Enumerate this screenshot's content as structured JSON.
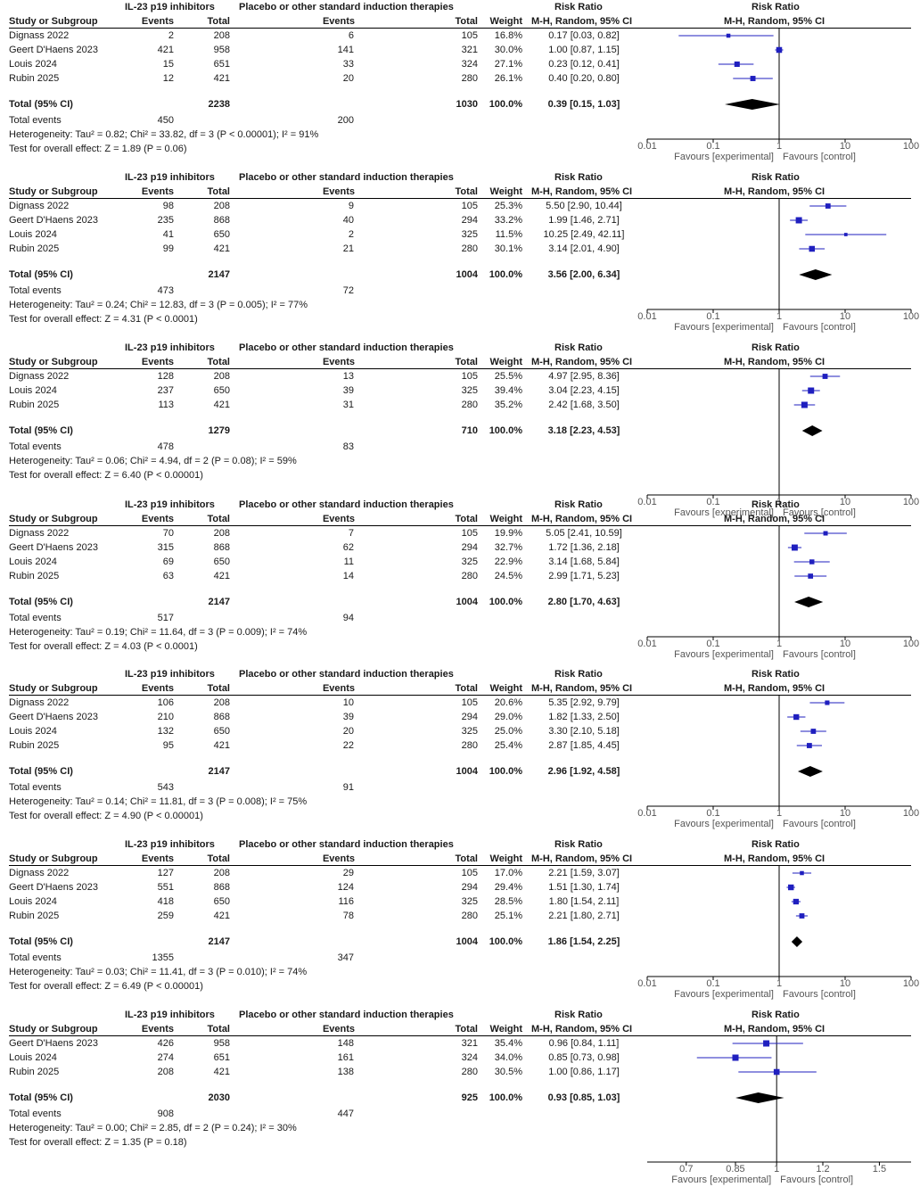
{
  "header": {
    "exp_group": "IL-23 p19 inhibitors",
    "ctrl_group": "Placebo or other standard induction therapies",
    "study_col": "Study or Subgroup",
    "events_col": "Events",
    "total_col": "Total",
    "weight_col": "Weight",
    "rr_col": "Risk Ratio",
    "rr_method": "M-H, Random, 95% CI",
    "favours_exp": "Favours [experimental]",
    "favours_ctrl": "Favours [control]",
    "total_label": "Total (95% CI)",
    "total_events_label": "Total events"
  },
  "chart_data": [
    {
      "type": "forest",
      "scale": "log",
      "xlim": [
        0.01,
        100
      ],
      "ticks": [
        0.01,
        0.1,
        1,
        10,
        100
      ],
      "tick_labels": [
        "0.01",
        "0.1",
        "1",
        "10",
        "100"
      ],
      "studies": [
        {
          "name": "Dignass  2022",
          "e_events": "2",
          "e_total": "208",
          "c_events": "6",
          "c_total": "105",
          "weight": "16.8%",
          "ci_text": "0.17 [0.03, 0.82]",
          "rr": 0.17,
          "lo": 0.03,
          "hi": 0.82
        },
        {
          "name": "Geert D'Haens 2023",
          "e_events": "421",
          "e_total": "958",
          "c_events": "141",
          "c_total": "321",
          "weight": "30.0%",
          "ci_text": "1.00 [0.87, 1.15]",
          "rr": 1.0,
          "lo": 0.87,
          "hi": 1.15
        },
        {
          "name": "Louis 2024",
          "e_events": "15",
          "e_total": "651",
          "c_events": "33",
          "c_total": "324",
          "weight": "27.1%",
          "ci_text": "0.23 [0.12, 0.41]",
          "rr": 0.23,
          "lo": 0.12,
          "hi": 0.41
        },
        {
          "name": "Rubin 2025",
          "e_events": "12",
          "e_total": "421",
          "c_events": "20",
          "c_total": "280",
          "weight": "26.1%",
          "ci_text": "0.40 [0.20, 0.80]",
          "rr": 0.4,
          "lo": 0.2,
          "hi": 0.8
        }
      ],
      "total": {
        "e_total": "2238",
        "c_total": "1030",
        "weight": "100.0%",
        "ci_text": "0.39 [0.15, 1.03]",
        "rr": 0.39,
        "lo": 0.15,
        "hi": 1.03
      },
      "total_events": {
        "e": "450",
        "c": "200"
      },
      "heterogeneity": "Heterogeneity: Tau² = 0.82; Chi² = 33.82, df = 3 (P < 0.00001); I² = 91%",
      "overall": "Test for overall effect: Z = 1.89 (P = 0.06)"
    },
    {
      "type": "forest",
      "scale": "log",
      "xlim": [
        0.01,
        100
      ],
      "ticks": [
        0.01,
        0.1,
        1,
        10,
        100
      ],
      "tick_labels": [
        "0.01",
        "0.1",
        "1",
        "10",
        "100"
      ],
      "studies": [
        {
          "name": "Dignass  2022",
          "e_events": "98",
          "e_total": "208",
          "c_events": "9",
          "c_total": "105",
          "weight": "25.3%",
          "ci_text": "5.50 [2.90, 10.44]",
          "rr": 5.5,
          "lo": 2.9,
          "hi": 10.44
        },
        {
          "name": "Geert D'Haens 2023",
          "e_events": "235",
          "e_total": "868",
          "c_events": "40",
          "c_total": "294",
          "weight": "33.2%",
          "ci_text": "1.99 [1.46, 2.71]",
          "rr": 1.99,
          "lo": 1.46,
          "hi": 2.71
        },
        {
          "name": "Louis 2024",
          "e_events": "41",
          "e_total": "650",
          "c_events": "2",
          "c_total": "325",
          "weight": "11.5%",
          "ci_text": "10.25 [2.49, 42.11]",
          "rr": 10.25,
          "lo": 2.49,
          "hi": 42.11
        },
        {
          "name": "Rubin 2025",
          "e_events": "99",
          "e_total": "421",
          "c_events": "21",
          "c_total": "280",
          "weight": "30.1%",
          "ci_text": "3.14 [2.01, 4.90]",
          "rr": 3.14,
          "lo": 2.01,
          "hi": 4.9
        }
      ],
      "total": {
        "e_total": "2147",
        "c_total": "1004",
        "weight": "100.0%",
        "ci_text": "3.56 [2.00, 6.34]",
        "rr": 3.56,
        "lo": 2.0,
        "hi": 6.34
      },
      "total_events": {
        "e": "473",
        "c": "72"
      },
      "heterogeneity": "Heterogeneity: Tau² = 0.24; Chi² = 12.83, df = 3 (P = 0.005); I² = 77%",
      "overall": "Test for overall effect: Z = 4.31 (P < 0.0001)"
    },
    {
      "type": "forest",
      "scale": "log",
      "xlim": [
        0.01,
        100
      ],
      "ticks": [
        0.01,
        0.1,
        1,
        10,
        100
      ],
      "tick_labels": [
        "0.01",
        "0.1",
        "1",
        "10",
        "100"
      ],
      "studies": [
        {
          "name": "Dignass  2022",
          "e_events": "128",
          "e_total": "208",
          "c_events": "13",
          "c_total": "105",
          "weight": "25.5%",
          "ci_text": "4.97 [2.95, 8.36]",
          "rr": 4.97,
          "lo": 2.95,
          "hi": 8.36
        },
        {
          "name": "Louis 2024",
          "e_events": "237",
          "e_total": "650",
          "c_events": "39",
          "c_total": "325",
          "weight": "39.4%",
          "ci_text": "3.04 [2.23, 4.15]",
          "rr": 3.04,
          "lo": 2.23,
          "hi": 4.15
        },
        {
          "name": "Rubin 2025",
          "e_events": "113",
          "e_total": "421",
          "c_events": "31",
          "c_total": "280",
          "weight": "35.2%",
          "ci_text": "2.42 [1.68, 3.50]",
          "rr": 2.42,
          "lo": 1.68,
          "hi": 3.5
        }
      ],
      "total": {
        "e_total": "1279",
        "c_total": "710",
        "weight": "100.0%",
        "ci_text": "3.18 [2.23, 4.53]",
        "rr": 3.18,
        "lo": 2.23,
        "hi": 4.53
      },
      "total_events": {
        "e": "478",
        "c": "83"
      },
      "heterogeneity": "Heterogeneity: Tau² = 0.06; Chi² = 4.94, df = 2 (P = 0.08); I² = 59%",
      "overall": "Test for overall effect: Z = 6.40 (P < 0.00001)"
    },
    {
      "type": "forest",
      "scale": "log",
      "xlim": [
        0.01,
        100
      ],
      "ticks": [
        0.01,
        0.1,
        1,
        10,
        100
      ],
      "tick_labels": [
        "0.01",
        "0.1",
        "1",
        "10",
        "100"
      ],
      "studies": [
        {
          "name": "Dignass  2022",
          "e_events": "70",
          "e_total": "208",
          "c_events": "7",
          "c_total": "105",
          "weight": "19.9%",
          "ci_text": "5.05 [2.41, 10.59]",
          "rr": 5.05,
          "lo": 2.41,
          "hi": 10.59
        },
        {
          "name": "Geert D'Haens 2023",
          "e_events": "315",
          "e_total": "868",
          "c_events": "62",
          "c_total": "294",
          "weight": "32.7%",
          "ci_text": "1.72 [1.36, 2.18]",
          "rr": 1.72,
          "lo": 1.36,
          "hi": 2.18
        },
        {
          "name": "Louis 2024",
          "e_events": "69",
          "e_total": "650",
          "c_events": "11",
          "c_total": "325",
          "weight": "22.9%",
          "ci_text": "3.14 [1.68, 5.84]",
          "rr": 3.14,
          "lo": 1.68,
          "hi": 5.84
        },
        {
          "name": "Rubin 2025",
          "e_events": "63",
          "e_total": "421",
          "c_events": "14",
          "c_total": "280",
          "weight": "24.5%",
          "ci_text": "2.99 [1.71, 5.23]",
          "rr": 2.99,
          "lo": 1.71,
          "hi": 5.23
        }
      ],
      "total": {
        "e_total": "2147",
        "c_total": "1004",
        "weight": "100.0%",
        "ci_text": "2.80 [1.70, 4.63]",
        "rr": 2.8,
        "lo": 1.7,
        "hi": 4.63
      },
      "total_events": {
        "e": "517",
        "c": "94"
      },
      "heterogeneity": "Heterogeneity: Tau² = 0.19; Chi² = 11.64, df = 3 (P = 0.009); I² = 74%",
      "overall": "Test for overall effect: Z = 4.03 (P < 0.0001)"
    },
    {
      "type": "forest",
      "scale": "log",
      "xlim": [
        0.01,
        100
      ],
      "ticks": [
        0.01,
        0.1,
        1,
        10,
        100
      ],
      "tick_labels": [
        "0.01",
        "0.1",
        "1",
        "10",
        "100"
      ],
      "studies": [
        {
          "name": "Dignass  2022",
          "e_events": "106",
          "e_total": "208",
          "c_events": "10",
          "c_total": "105",
          "weight": "20.6%",
          "ci_text": "5.35 [2.92, 9.79]",
          "rr": 5.35,
          "lo": 2.92,
          "hi": 9.79
        },
        {
          "name": "Geert D'Haens 2023",
          "e_events": "210",
          "e_total": "868",
          "c_events": "39",
          "c_total": "294",
          "weight": "29.0%",
          "ci_text": "1.82 [1.33, 2.50]",
          "rr": 1.82,
          "lo": 1.33,
          "hi": 2.5
        },
        {
          "name": "Louis 2024",
          "e_events": "132",
          "e_total": "650",
          "c_events": "20",
          "c_total": "325",
          "weight": "25.0%",
          "ci_text": "3.30 [2.10, 5.18]",
          "rr": 3.3,
          "lo": 2.1,
          "hi": 5.18
        },
        {
          "name": "Rubin 2025",
          "e_events": "95",
          "e_total": "421",
          "c_events": "22",
          "c_total": "280",
          "weight": "25.4%",
          "ci_text": "2.87 [1.85, 4.45]",
          "rr": 2.87,
          "lo": 1.85,
          "hi": 4.45
        }
      ],
      "total": {
        "e_total": "2147",
        "c_total": "1004",
        "weight": "100.0%",
        "ci_text": "2.96 [1.92, 4.58]",
        "rr": 2.96,
        "lo": 1.92,
        "hi": 4.58
      },
      "total_events": {
        "e": "543",
        "c": "91"
      },
      "heterogeneity": "Heterogeneity: Tau² = 0.14; Chi² = 11.81, df = 3 (P = 0.008); I² = 75%",
      "overall": "Test for overall effect: Z = 4.90 (P < 0.00001)"
    },
    {
      "type": "forest",
      "scale": "log",
      "xlim": [
        0.01,
        100
      ],
      "ticks": [
        0.01,
        0.1,
        1,
        10,
        100
      ],
      "tick_labels": [
        "0.01",
        "0.1",
        "1",
        "10",
        "100"
      ],
      "studies": [
        {
          "name": "Dignass  2022",
          "e_events": "127",
          "e_total": "208",
          "c_events": "29",
          "c_total": "105",
          "weight": "17.0%",
          "ci_text": "2.21 [1.59, 3.07]",
          "rr": 2.21,
          "lo": 1.59,
          "hi": 3.07
        },
        {
          "name": "Geert D'Haens 2023",
          "e_events": "551",
          "e_total": "868",
          "c_events": "124",
          "c_total": "294",
          "weight": "29.4%",
          "ci_text": "1.51 [1.30, 1.74]",
          "rr": 1.51,
          "lo": 1.3,
          "hi": 1.74
        },
        {
          "name": "Louis 2024",
          "e_events": "418",
          "e_total": "650",
          "c_events": "116",
          "c_total": "325",
          "weight": "28.5%",
          "ci_text": "1.80 [1.54, 2.11]",
          "rr": 1.8,
          "lo": 1.54,
          "hi": 2.11
        },
        {
          "name": "Rubin 2025",
          "e_events": "259",
          "e_total": "421",
          "c_events": "78",
          "c_total": "280",
          "weight": "25.1%",
          "ci_text": "2.21 [1.80, 2.71]",
          "rr": 2.21,
          "lo": 1.8,
          "hi": 2.71
        }
      ],
      "total": {
        "e_total": "2147",
        "c_total": "1004",
        "weight": "100.0%",
        "ci_text": "1.86 [1.54, 2.25]",
        "rr": 1.86,
        "lo": 1.54,
        "hi": 2.25
      },
      "total_events": {
        "e": "1355",
        "c": "347"
      },
      "heterogeneity": "Heterogeneity: Tau² = 0.03; Chi² = 11.41, df = 3 (P = 0.010); I² = 74%",
      "overall": "Test for overall effect: Z = 6.49 (P < 0.00001)"
    },
    {
      "type": "forest",
      "scale": "log",
      "xlim": [
        0.6,
        1.7
      ],
      "ticks": [
        0.7,
        0.85,
        1,
        1.2,
        1.5
      ],
      "tick_labels": [
        "0.7",
        "0.85",
        "1",
        "1.2",
        "1.5"
      ],
      "studies": [
        {
          "name": "Geert D'Haens 2023",
          "e_events": "426",
          "e_total": "958",
          "c_events": "148",
          "c_total": "321",
          "weight": "35.4%",
          "ci_text": "0.96 [0.84, 1.11]",
          "rr": 0.96,
          "lo": 0.84,
          "hi": 1.11
        },
        {
          "name": "Louis 2024",
          "e_events": "274",
          "e_total": "651",
          "c_events": "161",
          "c_total": "324",
          "weight": "34.0%",
          "ci_text": "0.85 [0.73, 0.98]",
          "rr": 0.85,
          "lo": 0.73,
          "hi": 0.98
        },
        {
          "name": "Rubin 2025",
          "e_events": "208",
          "e_total": "421",
          "c_events": "138",
          "c_total": "280",
          "weight": "30.5%",
          "ci_text": "1.00 [0.86, 1.17]",
          "rr": 1.0,
          "lo": 0.86,
          "hi": 1.17
        }
      ],
      "total": {
        "e_total": "2030",
        "c_total": "925",
        "weight": "100.0%",
        "ci_text": "0.93 [0.85, 1.03]",
        "rr": 0.93,
        "lo": 0.85,
        "hi": 1.03
      },
      "total_events": {
        "e": "908",
        "c": "447"
      },
      "heterogeneity": "Heterogeneity: Tau² = 0.00; Chi² = 2.85, df = 2 (P = 0.24); I² = 30%",
      "overall": "Test for overall effect: Z = 1.35 (P = 0.18)"
    }
  ],
  "colors": {
    "marker": "#1f1fbf",
    "text": "#1a1a1a",
    "line": "#000000",
    "grey_text": "#555555"
  }
}
